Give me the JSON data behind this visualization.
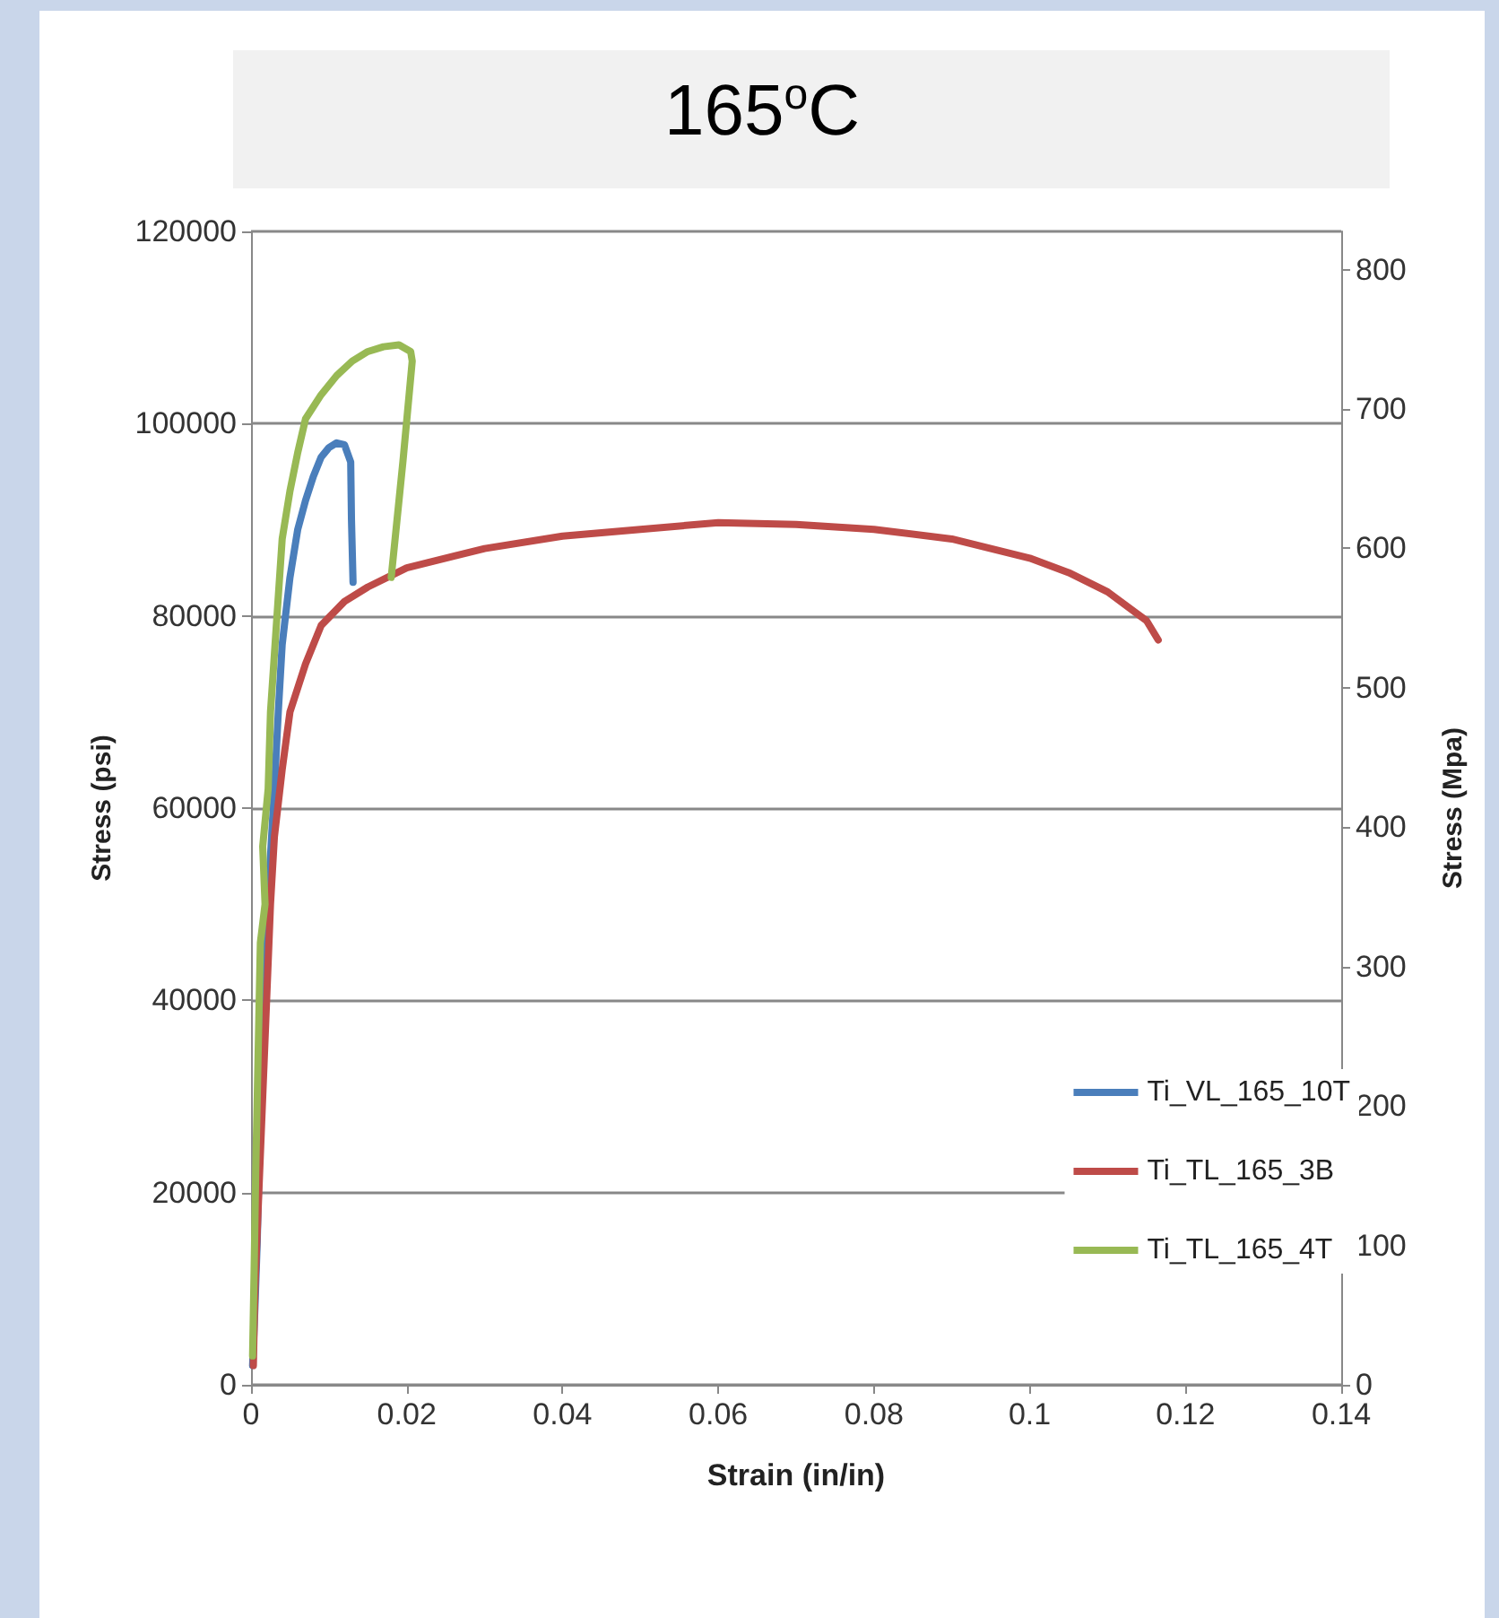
{
  "chart_data": {
    "type": "line",
    "title": "165$^{o}$C",
    "xlabel": "Strain (in/in)",
    "ylabel": "Stress (psi)",
    "y2label": "Stress (Mpa)",
    "xlim": [
      0,
      0.14
    ],
    "xticks": [
      0,
      0.02,
      0.04,
      0.06,
      0.08,
      0.1,
      0.12,
      0.14
    ],
    "ylim": [
      0,
      120000
    ],
    "yticks": [
      0,
      20000,
      40000,
      60000,
      80000,
      100000,
      120000
    ],
    "y2lim": [
      0,
      827.4
    ],
    "y2ticks": [
      0,
      100,
      200,
      300,
      400,
      500,
      600,
      700,
      800
    ],
    "grid": "y",
    "legend": "right",
    "marker": "none",
    "line_style": "solid",
    "series": [
      {
        "name": "Ti_VL_165_10T",
        "color": "#4a7ebb",
        "x": [
          0.0002,
          0.0005,
          0.0008,
          0.001,
          0.0013,
          0.0017,
          0.002,
          0.0025,
          0.003,
          0.0035,
          0.004,
          0.005,
          0.006,
          0.007,
          0.008,
          0.009,
          0.01,
          0.011,
          0.012,
          0.0128,
          0.0129,
          0.0131
        ],
        "values": [
          2000,
          8000,
          15000,
          22000,
          30000,
          40000,
          48000,
          55000,
          62000,
          70000,
          77000,
          84000,
          89000,
          92000,
          94500,
          96500,
          97500,
          98000,
          97800,
          96000,
          90000,
          83500
        ]
      },
      {
        "name": "Ti_TL_165_3B",
        "color": "#be4b48",
        "x": [
          0.0003,
          0.0005,
          0.001,
          0.0015,
          0.002,
          0.0025,
          0.003,
          0.004,
          0.005,
          0.007,
          0.009,
          0.012,
          0.015,
          0.02,
          0.03,
          0.04,
          0.05,
          0.06,
          0.07,
          0.08,
          0.09,
          0.1,
          0.105,
          0.11,
          0.115,
          0.1165
        ],
        "values": [
          2000,
          10000,
          20000,
          30000,
          40000,
          50000,
          57000,
          64000,
          70000,
          75000,
          79000,
          81500,
          83000,
          85000,
          87000,
          88300,
          89000,
          89700,
          89500,
          89000,
          88000,
          86000,
          84500,
          82500,
          79500,
          77500
        ]
      },
      {
        "name": "Ti_TL_165_4T",
        "color": "#98b954",
        "x": [
          0.0002,
          0.0004,
          0.0006,
          0.0008,
          0.001,
          0.0012,
          0.0018,
          0.0015,
          0.0022,
          0.0025,
          0.003,
          0.0035,
          0.004,
          0.005,
          0.006,
          0.007,
          0.009,
          0.011,
          0.013,
          0.015,
          0.017,
          0.019,
          0.0205,
          0.0207,
          0.0195,
          0.018
        ],
        "values": [
          3000,
          12000,
          22000,
          30000,
          38000,
          46000,
          50000,
          56000,
          62000,
          70000,
          76000,
          82000,
          88000,
          93000,
          97000,
          100500,
          103000,
          105000,
          106500,
          107500,
          108000,
          108200,
          107500,
          106500,
          96000,
          84000
        ]
      }
    ]
  }
}
